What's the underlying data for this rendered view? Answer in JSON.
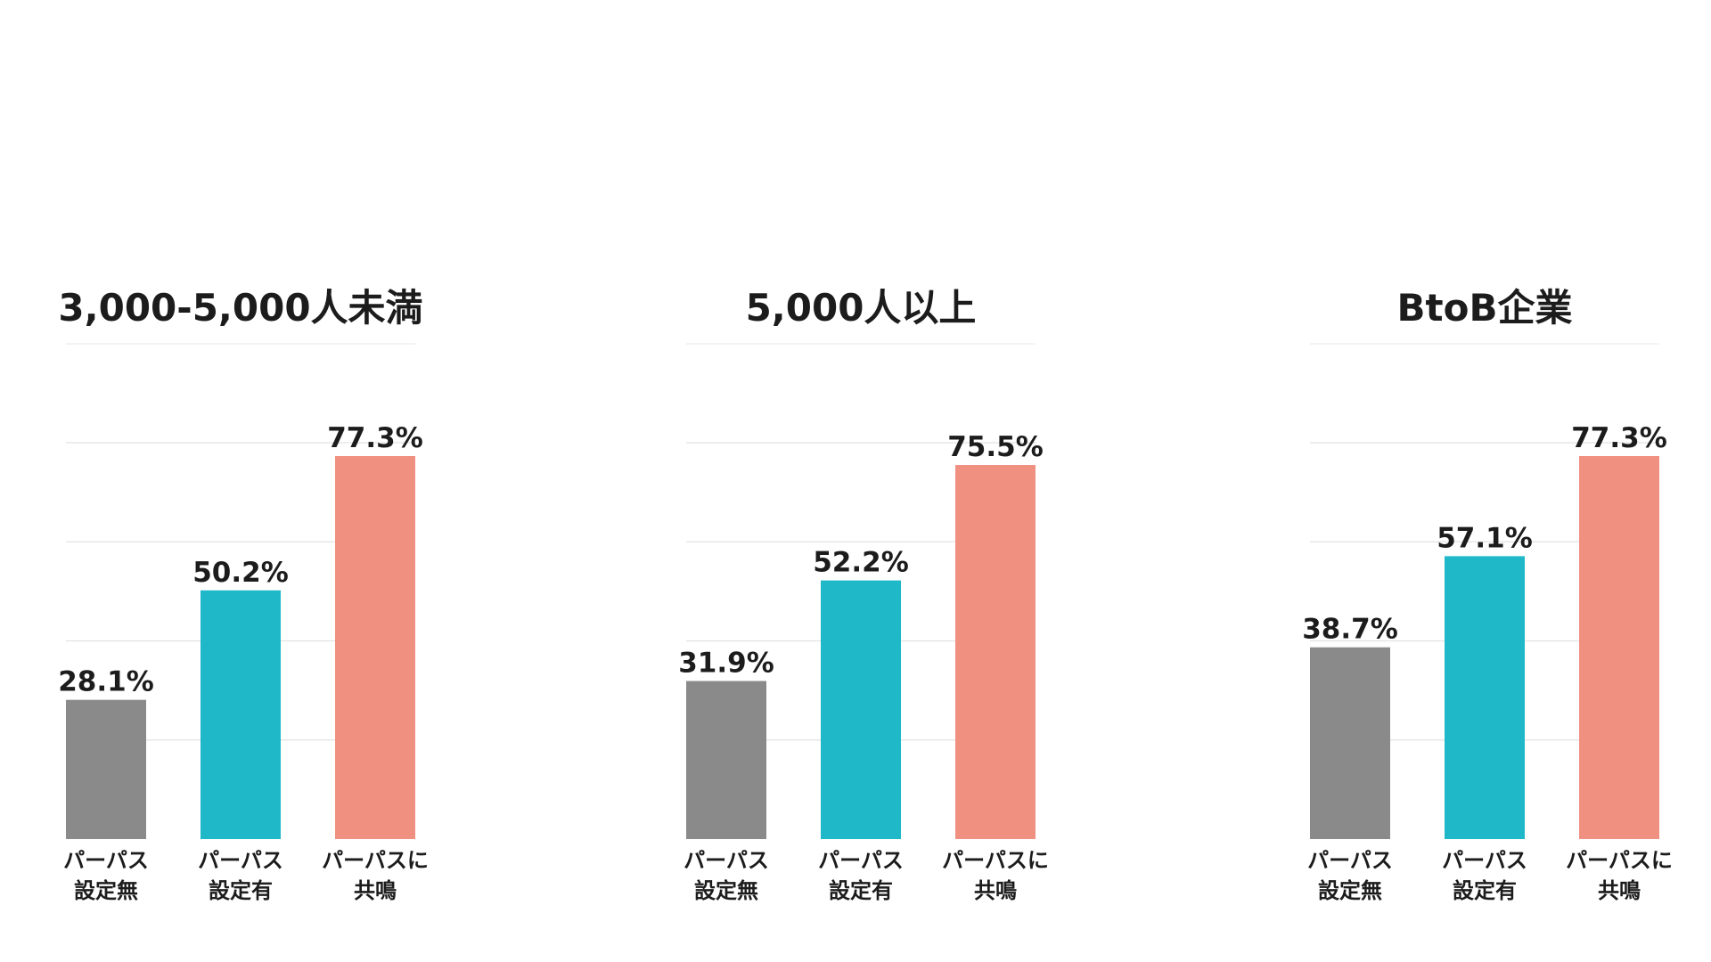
{
  "colors": {
    "none": "#8a8a8a",
    "with": "#1fb8c9",
    "resonate": "#f09080"
  },
  "chart_data": [
    {
      "type": "bar",
      "title": "3,000-5,000人未満",
      "categories": [
        "パーパス\n設定無",
        "パーパス\n設定有",
        "パーパスに\n共鳴"
      ],
      "values": [
        28.1,
        50.2,
        77.3
      ],
      "value_labels": [
        "28.1%",
        "50.2%",
        "77.3%"
      ],
      "ylim": [
        0,
        80
      ],
      "grid": true
    },
    {
      "type": "bar",
      "title": "5,000人以上",
      "categories": [
        "パーパス\n設定無",
        "パーパス\n設定有",
        "パーパスに\n共鳴"
      ],
      "values": [
        31.9,
        52.2,
        75.5
      ],
      "value_labels": [
        "31.9%",
        "52.2%",
        "75.5%"
      ],
      "ylim": [
        0,
        80
      ],
      "grid": true
    },
    {
      "type": "bar",
      "title": "BtoB企業",
      "categories": [
        "パーパス\n設定無",
        "パーパス\n設定有",
        "パーパスに\n共鳴"
      ],
      "values": [
        38.7,
        57.1,
        77.3
      ],
      "value_labels": [
        "38.7%",
        "57.1%",
        "77.3%"
      ],
      "ylim": [
        0,
        80
      ],
      "grid": true
    }
  ]
}
